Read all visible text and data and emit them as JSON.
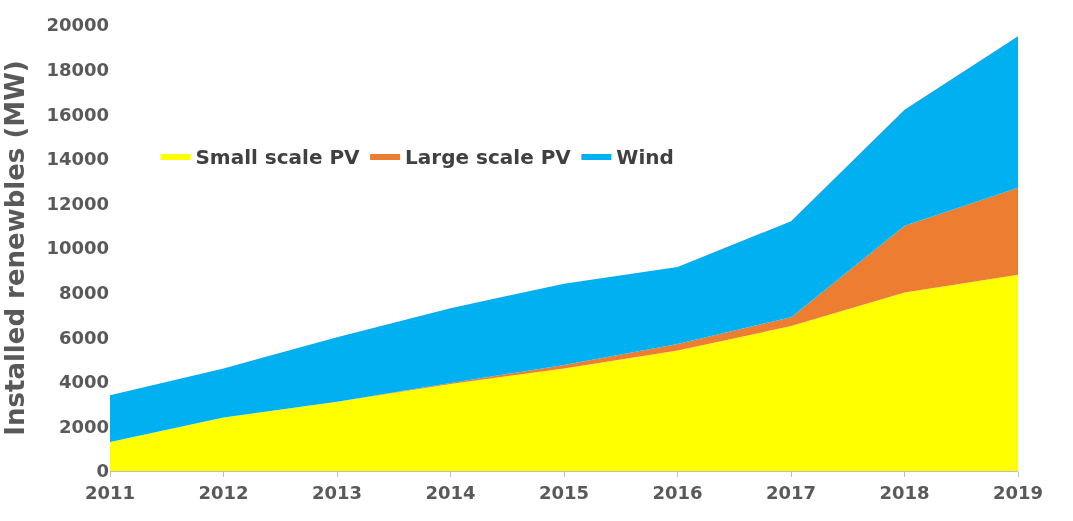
{
  "chart_data": {
    "type": "area",
    "stacked": true,
    "ylabel": "Installed renewbles (MW)",
    "x": [
      2011,
      2012,
      2013,
      2014,
      2015,
      2016,
      2017,
      2018,
      2019
    ],
    "xlim": [
      2011,
      2019
    ],
    "xticks": [
      2011,
      2012,
      2013,
      2014,
      2015,
      2016,
      2017,
      2018,
      2019
    ],
    "ylim": [
      0,
      20000
    ],
    "yticks": [
      0,
      2000,
      4000,
      6000,
      8000,
      10000,
      12000,
      14000,
      16000,
      18000,
      20000
    ],
    "legend": "top left",
    "series": [
      {
        "name": "Small scale PV",
        "color": "#ffff00",
        "values": [
          1300,
          2400,
          3100,
          3900,
          4600,
          5400,
          6500,
          8000,
          8800
        ]
      },
      {
        "name": "Large scale PV",
        "color": "#ed7d31",
        "values": [
          0,
          0,
          0,
          50,
          150,
          300,
          400,
          3000,
          3900
        ]
      },
      {
        "name": "Wind",
        "color": "#00b0f0",
        "values": [
          2100,
          2200,
          2900,
          3350,
          3650,
          3450,
          4300,
          5200,
          6800
        ]
      }
    ]
  }
}
